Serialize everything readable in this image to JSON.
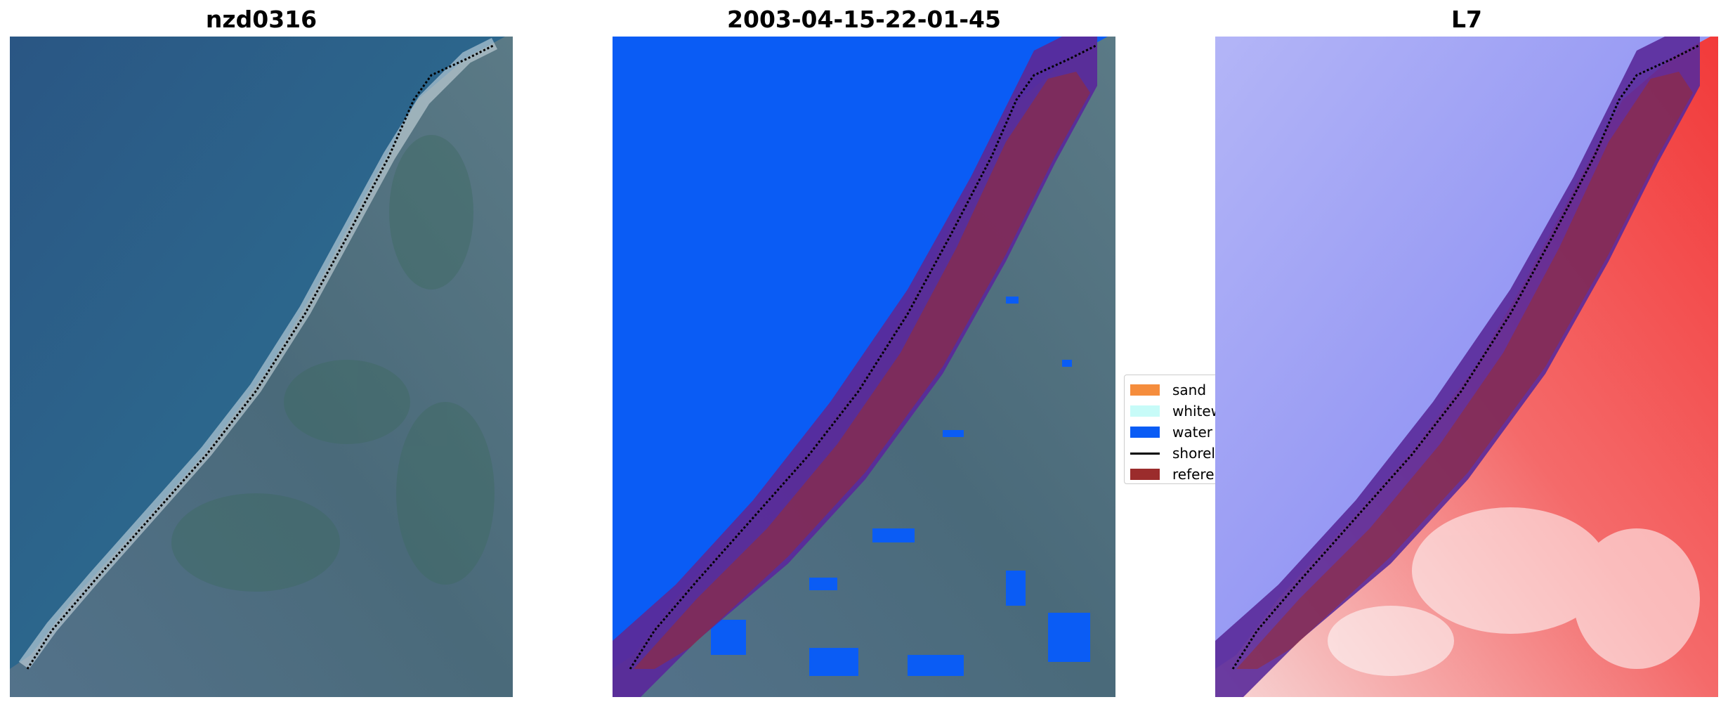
{
  "panels": [
    {
      "title": "nzd0316"
    },
    {
      "title": "2003-04-15-22-01-45"
    },
    {
      "title": "L7"
    }
  ],
  "legend": {
    "items": [
      {
        "label": "sand",
        "color": "#f58d3d",
        "kind": "patch"
      },
      {
        "label": "whitew",
        "color": "#c7fbf8",
        "kind": "patch"
      },
      {
        "label": "water",
        "color": "#0a5cf5",
        "kind": "patch"
      },
      {
        "label": "shorel",
        "color": "#000000",
        "kind": "line"
      },
      {
        "label": "referen",
        "color": "#9b2c2c",
        "kind": "patch"
      }
    ]
  },
  "colors": {
    "sea": "#2c5a84",
    "land": "#4d6c82",
    "water_mask": "#0a5cf5",
    "buffer": "#5a2a9a",
    "reference": "#9b2c2c",
    "index_blue": "#8a8cf0",
    "index_red": "#f23a3a"
  }
}
